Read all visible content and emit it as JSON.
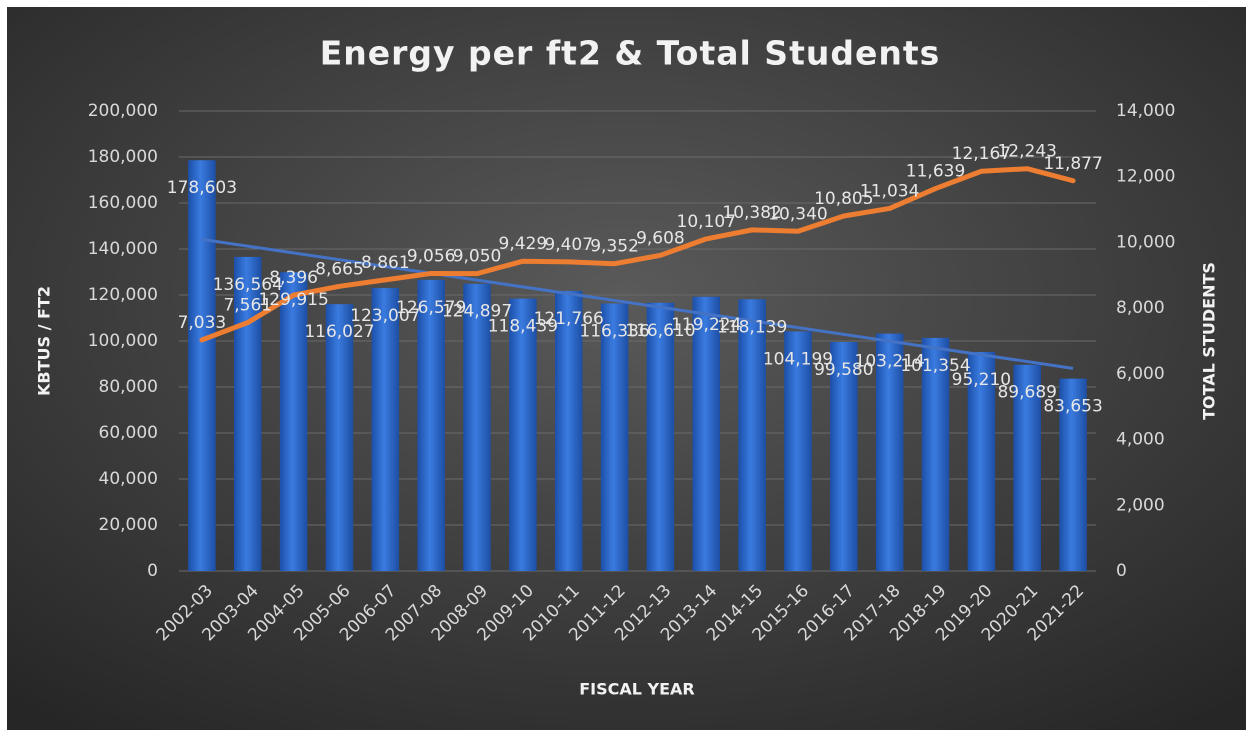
{
  "chart_data": {
    "type": "bar-line",
    "title": "Energy per ft2 & Total Students",
    "xlabel": "FISCAL YEAR",
    "ylabel": "KBTUS / FT2",
    "y2label": "TOTAL STUDENTS",
    "categories": [
      "2002-03",
      "2003-04",
      "2004-05",
      "2005-06",
      "2006-07",
      "2007-08",
      "2008-09",
      "2009-10",
      "2010-11",
      "2011-12",
      "2012-13",
      "2013-14",
      "2014-15",
      "2015-16",
      "2016-17",
      "2017-18",
      "2018-19",
      "2019-20",
      "2020-21",
      "2021-22"
    ],
    "series": [
      {
        "type": "bar",
        "color": "#2f6fd3",
        "values": [
          178603,
          136564,
          129915,
          116027,
          123007,
          126579,
          124897,
          118439,
          121766,
          116336,
          116610,
          119224,
          118139,
          104199,
          99580,
          103214,
          101354,
          95210,
          89689,
          83653
        ],
        "value_labels": [
          "178,603",
          "136,564",
          "129,915",
          "116,027",
          "123,007",
          "126,579",
          "124,897",
          "118,439",
          "121,766",
          "116,336",
          "116,610",
          "119,224",
          "118,139",
          "104,199",
          "99,580",
          "103,214",
          "101,354",
          "95,210",
          "89,689",
          "83,653"
        ],
        "trendline": true,
        "trend_color": "#4472c4"
      },
      {
        "type": "line",
        "axis": "y2",
        "color": "#ed7d31",
        "values": [
          7033,
          7561,
          8396,
          8665,
          8861,
          9056,
          9050,
          9429,
          9407,
          9352,
          9608,
          10107,
          10382,
          10340,
          10805,
          11034,
          11639,
          12167,
          12243,
          11877
        ],
        "value_labels": [
          "7,033",
          "7,561",
          "8,396",
          "8,665",
          "8,861",
          "9,056",
          "9,050",
          "9,429",
          "9,407",
          "9,352",
          "9,608",
          "10,107",
          "10,382",
          "10,340",
          "10,805",
          "11,034",
          "11,639",
          "12,167",
          "12,243",
          "11,877"
        ]
      }
    ],
    "ylim": [
      0,
      200000
    ],
    "yticks": [
      0,
      {
        "value": 20000,
        "label": "20,000"
      },
      {
        "value": 40000,
        "label": "40,000"
      },
      {
        "value": 60000,
        "label": "60,000"
      },
      {
        "value": 80000,
        "label": "80,000"
      },
      {
        "value": 100000,
        "label": "100,000"
      },
      {
        "value": 120000,
        "label": "120,000"
      },
      {
        "value": 140000,
        "label": "140,000"
      },
      {
        "value": 160000,
        "label": "160,000"
      },
      {
        "value": 180000,
        "label": "180,000"
      },
      {
        "value": 200000,
        "label": "200,000"
      }
    ],
    "y2lim": [
      0,
      14000
    ],
    "y2ticks": [
      0,
      {
        "value": 2000,
        "label": "2,000"
      },
      {
        "value": 4000,
        "label": "4,000"
      },
      {
        "value": 6000,
        "label": "6,000"
      },
      {
        "value": 8000,
        "label": "8,000"
      },
      {
        "value": 10000,
        "label": "10,000"
      },
      {
        "value": 12000,
        "label": "12,000"
      },
      {
        "value": 14000,
        "label": "14,000"
      }
    ],
    "grid": true
  }
}
